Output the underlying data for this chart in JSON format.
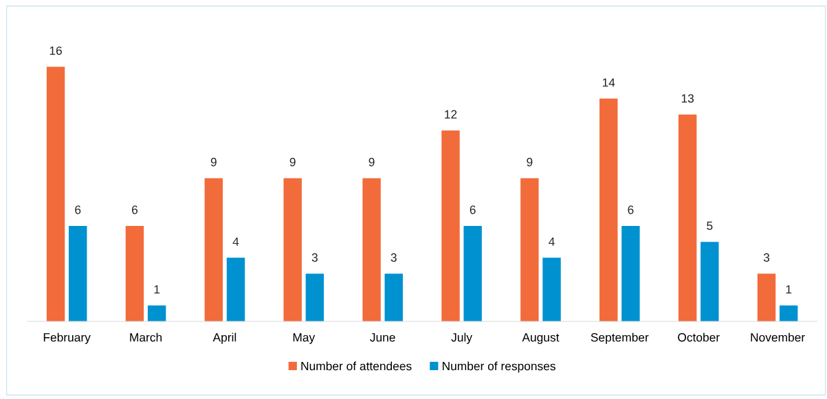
{
  "chart_data": {
    "type": "bar",
    "categories": [
      "February",
      "March",
      "April",
      "May",
      "June",
      "July",
      "August",
      "September",
      "October",
      "November"
    ],
    "series": [
      {
        "name": "Number of attendees",
        "color": "#f26b3a",
        "values": [
          16,
          6,
          9,
          9,
          9,
          12,
          9,
          14,
          13,
          3
        ]
      },
      {
        "name": "Number of responses",
        "color": "#0091d0",
        "values": [
          6,
          1,
          4,
          3,
          3,
          6,
          4,
          6,
          5,
          1
        ]
      }
    ],
    "data_labels": true,
    "legend": "bottom",
    "grid": false,
    "tick_labels": "x"
  }
}
